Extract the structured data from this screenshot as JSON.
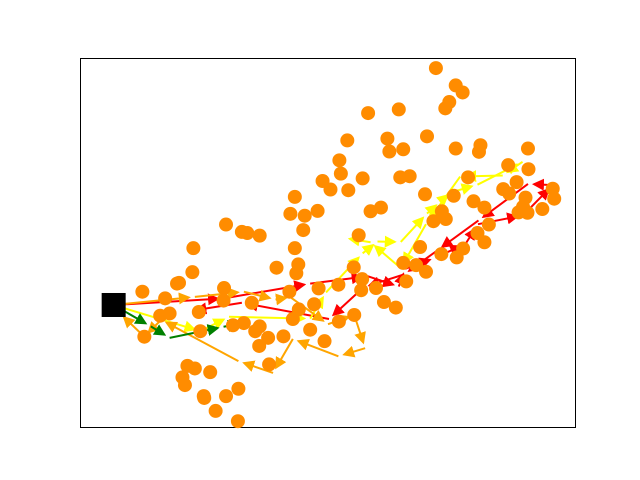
{
  "chart_data": {
    "type": "scatter",
    "title": "",
    "xlabel": "",
    "ylabel": "",
    "xlim": [
      0,
      100
    ],
    "ylim": [
      0,
      100
    ],
    "axis_ticks": false,
    "grid": false,
    "colors": {
      "node": "#ff8c00",
      "depot": "#000000",
      "route_red": "#ff0000",
      "route_yellow": "#ffff00",
      "route_orange": "#ffa500",
      "route_green": "#008000"
    },
    "depot": {
      "x": 6.7,
      "y": 33.2
    },
    "nodes": [
      [
        12.5,
        36.8
      ],
      [
        17.1,
        35.0
      ],
      [
        16.1,
        30.3
      ],
      [
        12.9,
        24.6
      ],
      [
        18.0,
        30.9
      ],
      [
        24.2,
        26.1
      ],
      [
        22.6,
        42.1
      ],
      [
        22.8,
        48.6
      ],
      [
        29.4,
        55.0
      ],
      [
        32.6,
        53.0
      ],
      [
        33.7,
        52.7
      ],
      [
        36.2,
        52.0
      ],
      [
        29.0,
        37.8
      ],
      [
        23.9,
        31.3
      ],
      [
        28.9,
        34.4
      ],
      [
        30.8,
        27.7
      ],
      [
        33.0,
        28.3
      ],
      [
        36.2,
        27.4
      ],
      [
        35.3,
        26.1
      ],
      [
        42.2,
        36.8
      ],
      [
        39.6,
        43.3
      ],
      [
        44.0,
        44.2
      ],
      [
        43.3,
        48.6
      ],
      [
        45.0,
        53.5
      ],
      [
        42.4,
        57.9
      ],
      [
        43.3,
        62.5
      ],
      [
        48.9,
        66.8
      ],
      [
        52.6,
        68.8
      ],
      [
        57.0,
        67.5
      ],
      [
        56.2,
        52.1
      ],
      [
        58.6,
        58.6
      ],
      [
        60.7,
        59.6
      ],
      [
        54.1,
        64.3
      ],
      [
        52.3,
        72.4
      ],
      [
        53.9,
        77.8
      ],
      [
        62.0,
        78.3
      ],
      [
        62.4,
        74.8
      ],
      [
        58.1,
        85.2
      ],
      [
        64.3,
        86.2
      ],
      [
        65.2,
        75.4
      ],
      [
        66.5,
        68.1
      ],
      [
        64.6,
        67.8
      ],
      [
        70.0,
        78.9
      ],
      [
        75.8,
        75.6
      ],
      [
        74.5,
        88.2
      ],
      [
        73.7,
        86.5
      ],
      [
        77.2,
        90.8
      ],
      [
        75.8,
        92.7
      ],
      [
        71.8,
        97.4
      ],
      [
        80.5,
        74.7
      ],
      [
        79.4,
        61.3
      ],
      [
        73.8,
        56.5
      ],
      [
        69.6,
        63.2
      ],
      [
        78.3,
        67.8
      ],
      [
        80.8,
        76.5
      ],
      [
        81.6,
        59.6
      ],
      [
        81.6,
        50.2
      ],
      [
        86.4,
        71.1
      ],
      [
        88.5,
        58.3
      ],
      [
        88.1,
        66.5
      ],
      [
        90.4,
        75.6
      ],
      [
        90.5,
        70.0
      ],
      [
        95.4,
        64.7
      ],
      [
        89.9,
        62.3
      ],
      [
        85.4,
        64.6
      ],
      [
        82.5,
        55.0
      ],
      [
        80.2,
        52.7
      ],
      [
        77.3,
        48.5
      ],
      [
        76.0,
        46.1
      ],
      [
        72.9,
        47.0
      ],
      [
        67.8,
        44.0
      ],
      [
        65.8,
        39.6
      ],
      [
        59.7,
        37.8
      ],
      [
        56.9,
        40.2
      ],
      [
        55.2,
        43.4
      ],
      [
        55.3,
        30.5
      ],
      [
        52.2,
        28.7
      ],
      [
        47.2,
        33.4
      ],
      [
        43.6,
        41.8
      ],
      [
        36.1,
        22.1
      ],
      [
        34.6,
        33.8
      ],
      [
        37.9,
        24.3
      ],
      [
        41.0,
        24.7
      ],
      [
        44.1,
        32.0
      ],
      [
        46.4,
        26.5
      ],
      [
        49.3,
        23.4
      ],
      [
        48.1,
        37.7
      ],
      [
        52.1,
        38.7
      ],
      [
        56.7,
        37.2
      ],
      [
        61.3,
        34.0
      ],
      [
        63.7,
        32.5
      ],
      [
        65.2,
        44.6
      ],
      [
        68.6,
        48.9
      ],
      [
        71.3,
        55.9
      ],
      [
        73.0,
        58.6
      ],
      [
        75.4,
        62.8
      ],
      [
        86.6,
        63.4
      ],
      [
        89.4,
        59.8
      ],
      [
        93.3,
        59.2
      ],
      [
        95.7,
        62.0
      ],
      [
        90.3,
        58.2
      ],
      [
        69.8,
        42.2
      ],
      [
        47.9,
        58.7
      ],
      [
        45.3,
        57.4
      ],
      [
        50.5,
        64.5
      ],
      [
        42.9,
        29.4
      ],
      [
        23.1,
        16.0
      ],
      [
        21.6,
        16.7
      ],
      [
        31.9,
        10.5
      ],
      [
        38.1,
        17.1
      ],
      [
        24.9,
        8.5
      ],
      [
        27.3,
        4.5
      ],
      [
        25.0,
        8.0
      ],
      [
        29.4,
        8.5
      ],
      [
        21.1,
        11.5
      ],
      [
        31.8,
        1.7
      ],
      [
        26.2,
        15.0
      ],
      [
        19.9,
        39.2
      ],
      [
        20.6,
        13.6
      ],
      [
        19.5,
        39.0
      ]
    ],
    "routes": [
      {
        "color": "red",
        "points": [
          [
            6.7,
            33.2
          ],
          [
            29.0,
            35.0
          ],
          [
            46.4,
            39.0
          ],
          [
            58.0,
            41.0
          ],
          [
            64.3,
            38.2
          ],
          [
            65.6,
            43.0
          ],
          [
            71.7,
            46.0
          ],
          [
            77.8,
            49.8
          ],
          [
            80.3,
            55.1
          ],
          [
            89.4,
            57.5
          ],
          [
            95.4,
            65.7
          ],
          [
            90.4,
            66.0
          ],
          [
            80.4,
            56.1
          ],
          [
            72.1,
            48.0
          ],
          [
            65.4,
            41.5
          ],
          [
            57.2,
            38.0
          ],
          [
            50.2,
            29.4
          ],
          [
            32.6,
            33.8
          ],
          [
            22.2,
            31.6
          ]
        ]
      },
      {
        "color": "yellow",
        "points": [
          [
            6.7,
            33.2
          ],
          [
            24.2,
            26.1
          ],
          [
            30.0,
            30.0
          ],
          [
            46.4,
            29.5
          ],
          [
            49.6,
            36.6
          ],
          [
            57.0,
            47.2
          ],
          [
            60.0,
            50.4
          ],
          [
            64.7,
            50.3
          ],
          [
            70.0,
            58.0
          ],
          [
            72.6,
            61.1
          ],
          [
            74.8,
            63.7
          ],
          [
            80.2,
            65.8
          ],
          [
            89.3,
            72.0
          ],
          [
            85.3,
            68.3
          ],
          [
            76.7,
            68.0
          ],
          [
            69.8,
            55.1
          ],
          [
            64.7,
            43.2
          ],
          [
            58.6,
            50.2
          ],
          [
            53.2,
            51.4
          ]
        ]
      },
      {
        "color": "orange",
        "points": [
          [
            6.7,
            33.2
          ],
          [
            23.1,
            35.4
          ],
          [
            33.0,
            36.8
          ],
          [
            39.4,
            34.7
          ],
          [
            42.4,
            35.3
          ],
          [
            50.0,
            28.0
          ],
          [
            55.3,
            30.5
          ],
          [
            57.5,
            21.5
          ],
          [
            52.1,
            19.3
          ],
          [
            42.9,
            24.0
          ],
          [
            38.9,
            14.8
          ],
          [
            31.9,
            18.0
          ],
          [
            16.3,
            29.2
          ],
          [
            12.9,
            24.6
          ],
          [
            7.9,
            31.0
          ]
        ]
      },
      {
        "color": "green",
        "points": [
          [
            6.7,
            33.2
          ],
          [
            14.2,
            27.4
          ],
          [
            18.0,
            24.3
          ],
          [
            28.9,
            27.3
          ],
          [
            33.0,
            28.3
          ]
        ]
      }
    ]
  }
}
